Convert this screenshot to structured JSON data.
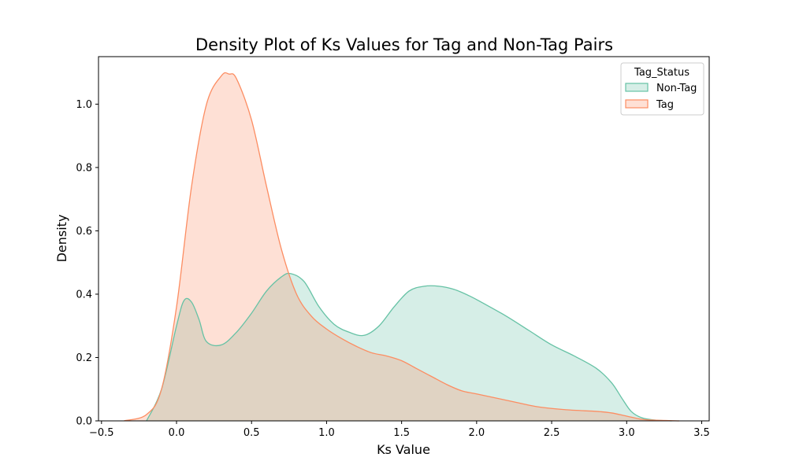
{
  "chart_data": {
    "type": "area",
    "title": "Density Plot of Ks Values for Tag and Non-Tag Pairs",
    "xlabel": "Ks Value",
    "ylabel": "Density",
    "xlim": [
      -0.52,
      3.55
    ],
    "ylim": [
      0.0,
      1.15
    ],
    "xticks": [
      -0.5,
      0.0,
      0.5,
      1.0,
      1.5,
      2.0,
      2.5,
      3.0,
      3.5
    ],
    "xtick_labels": [
      "−0.5",
      "0.0",
      "0.5",
      "1.0",
      "1.5",
      "2.0",
      "2.5",
      "3.0",
      "3.5"
    ],
    "yticks": [
      0.0,
      0.2,
      0.4,
      0.6,
      0.8,
      1.0
    ],
    "ytick_labels": [
      "0.0",
      "0.2",
      "0.4",
      "0.6",
      "0.8",
      "1.0"
    ],
    "grid": false,
    "legend": {
      "title": "Tag_Status",
      "placement": "top-right"
    },
    "series": [
      {
        "name": "Non-Tag",
        "line_color": "#66c2a5",
        "fill_color": "#66c2a5",
        "fill_opacity": 0.27,
        "x": [
          -0.2,
          -0.1,
          0.0,
          0.05,
          0.1,
          0.15,
          0.2,
          0.3,
          0.4,
          0.5,
          0.6,
          0.7,
          0.76,
          0.85,
          0.95,
          1.05,
          1.15,
          1.25,
          1.35,
          1.45,
          1.55,
          1.65,
          1.75,
          1.85,
          1.95,
          2.05,
          2.2,
          2.35,
          2.5,
          2.65,
          2.8,
          2.9,
          2.97,
          3.03,
          3.1,
          3.2,
          3.3
        ],
        "y": [
          0.0,
          0.1,
          0.3,
          0.38,
          0.375,
          0.32,
          0.25,
          0.24,
          0.28,
          0.34,
          0.41,
          0.455,
          0.465,
          0.44,
          0.36,
          0.305,
          0.28,
          0.27,
          0.3,
          0.36,
          0.41,
          0.425,
          0.425,
          0.415,
          0.395,
          0.37,
          0.33,
          0.285,
          0.24,
          0.205,
          0.165,
          0.12,
          0.07,
          0.03,
          0.01,
          0.002,
          0.0
        ]
      },
      {
        "name": "Tag",
        "line_color": "#fc8d62",
        "fill_color": "#fc8d62",
        "fill_opacity": 0.27,
        "x": [
          -0.35,
          -0.2,
          -0.1,
          0.0,
          0.1,
          0.2,
          0.3,
          0.35,
          0.4,
          0.5,
          0.6,
          0.7,
          0.8,
          0.9,
          1.0,
          1.1,
          1.2,
          1.3,
          1.4,
          1.5,
          1.6,
          1.7,
          1.8,
          1.9,
          2.0,
          2.2,
          2.4,
          2.6,
          2.8,
          2.9,
          3.0,
          3.1,
          3.2,
          3.35
        ],
        "y": [
          0.0,
          0.02,
          0.1,
          0.36,
          0.74,
          1.0,
          1.09,
          1.095,
          1.08,
          0.95,
          0.74,
          0.54,
          0.4,
          0.33,
          0.29,
          0.26,
          0.235,
          0.215,
          0.205,
          0.19,
          0.165,
          0.14,
          0.115,
          0.095,
          0.085,
          0.065,
          0.045,
          0.035,
          0.03,
          0.025,
          0.015,
          0.005,
          0.002,
          0.0
        ]
      }
    ]
  }
}
